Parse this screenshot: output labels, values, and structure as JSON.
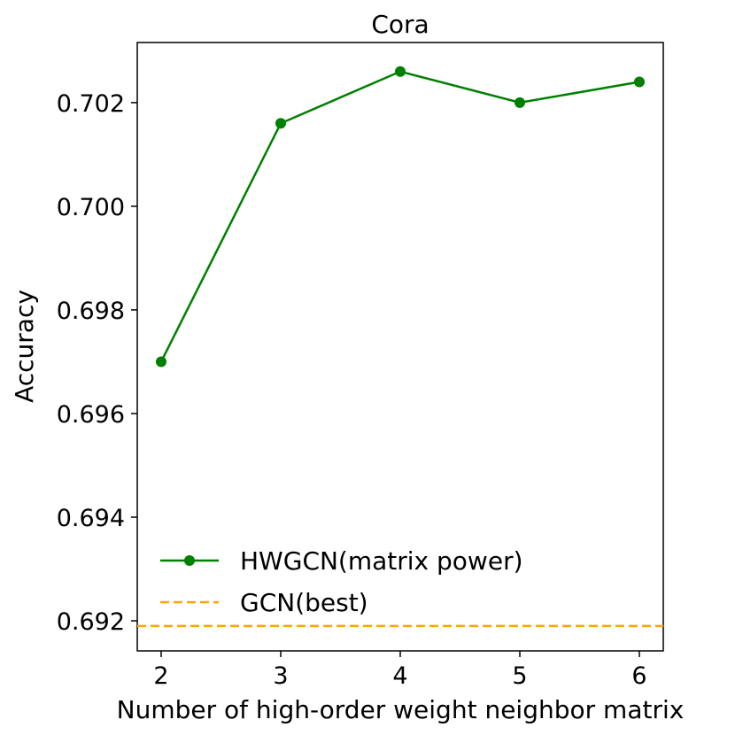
{
  "chart_data": {
    "type": "line",
    "title": "Cora",
    "xlabel": "Number of high-order weight neighbor matrix",
    "ylabel": "Accuracy",
    "xlim": [
      1.8,
      6.2
    ],
    "ylim": [
      0.69142,
      0.70316
    ],
    "x_ticks": [
      2,
      3,
      4,
      5,
      6
    ],
    "y_ticks": [
      0.692,
      0.694,
      0.696,
      0.698,
      0.7,
      0.702
    ],
    "y_tick_labels": [
      "0.692",
      "0.694",
      "0.696",
      "0.698",
      "0.700",
      "0.702"
    ],
    "grid": false,
    "legend_position": "lower-left",
    "series": [
      {
        "name": "HWGCN(matrix power)",
        "color": "#008000",
        "marker": "circle",
        "x": [
          2,
          3,
          4,
          5,
          6
        ],
        "values": [
          0.697,
          0.7016,
          0.7026,
          0.702,
          0.7024
        ]
      }
    ],
    "reference_lines": [
      {
        "name": "GCN(best)",
        "color": "#FFA500",
        "style": "dashed",
        "y": 0.6919
      }
    ]
  }
}
